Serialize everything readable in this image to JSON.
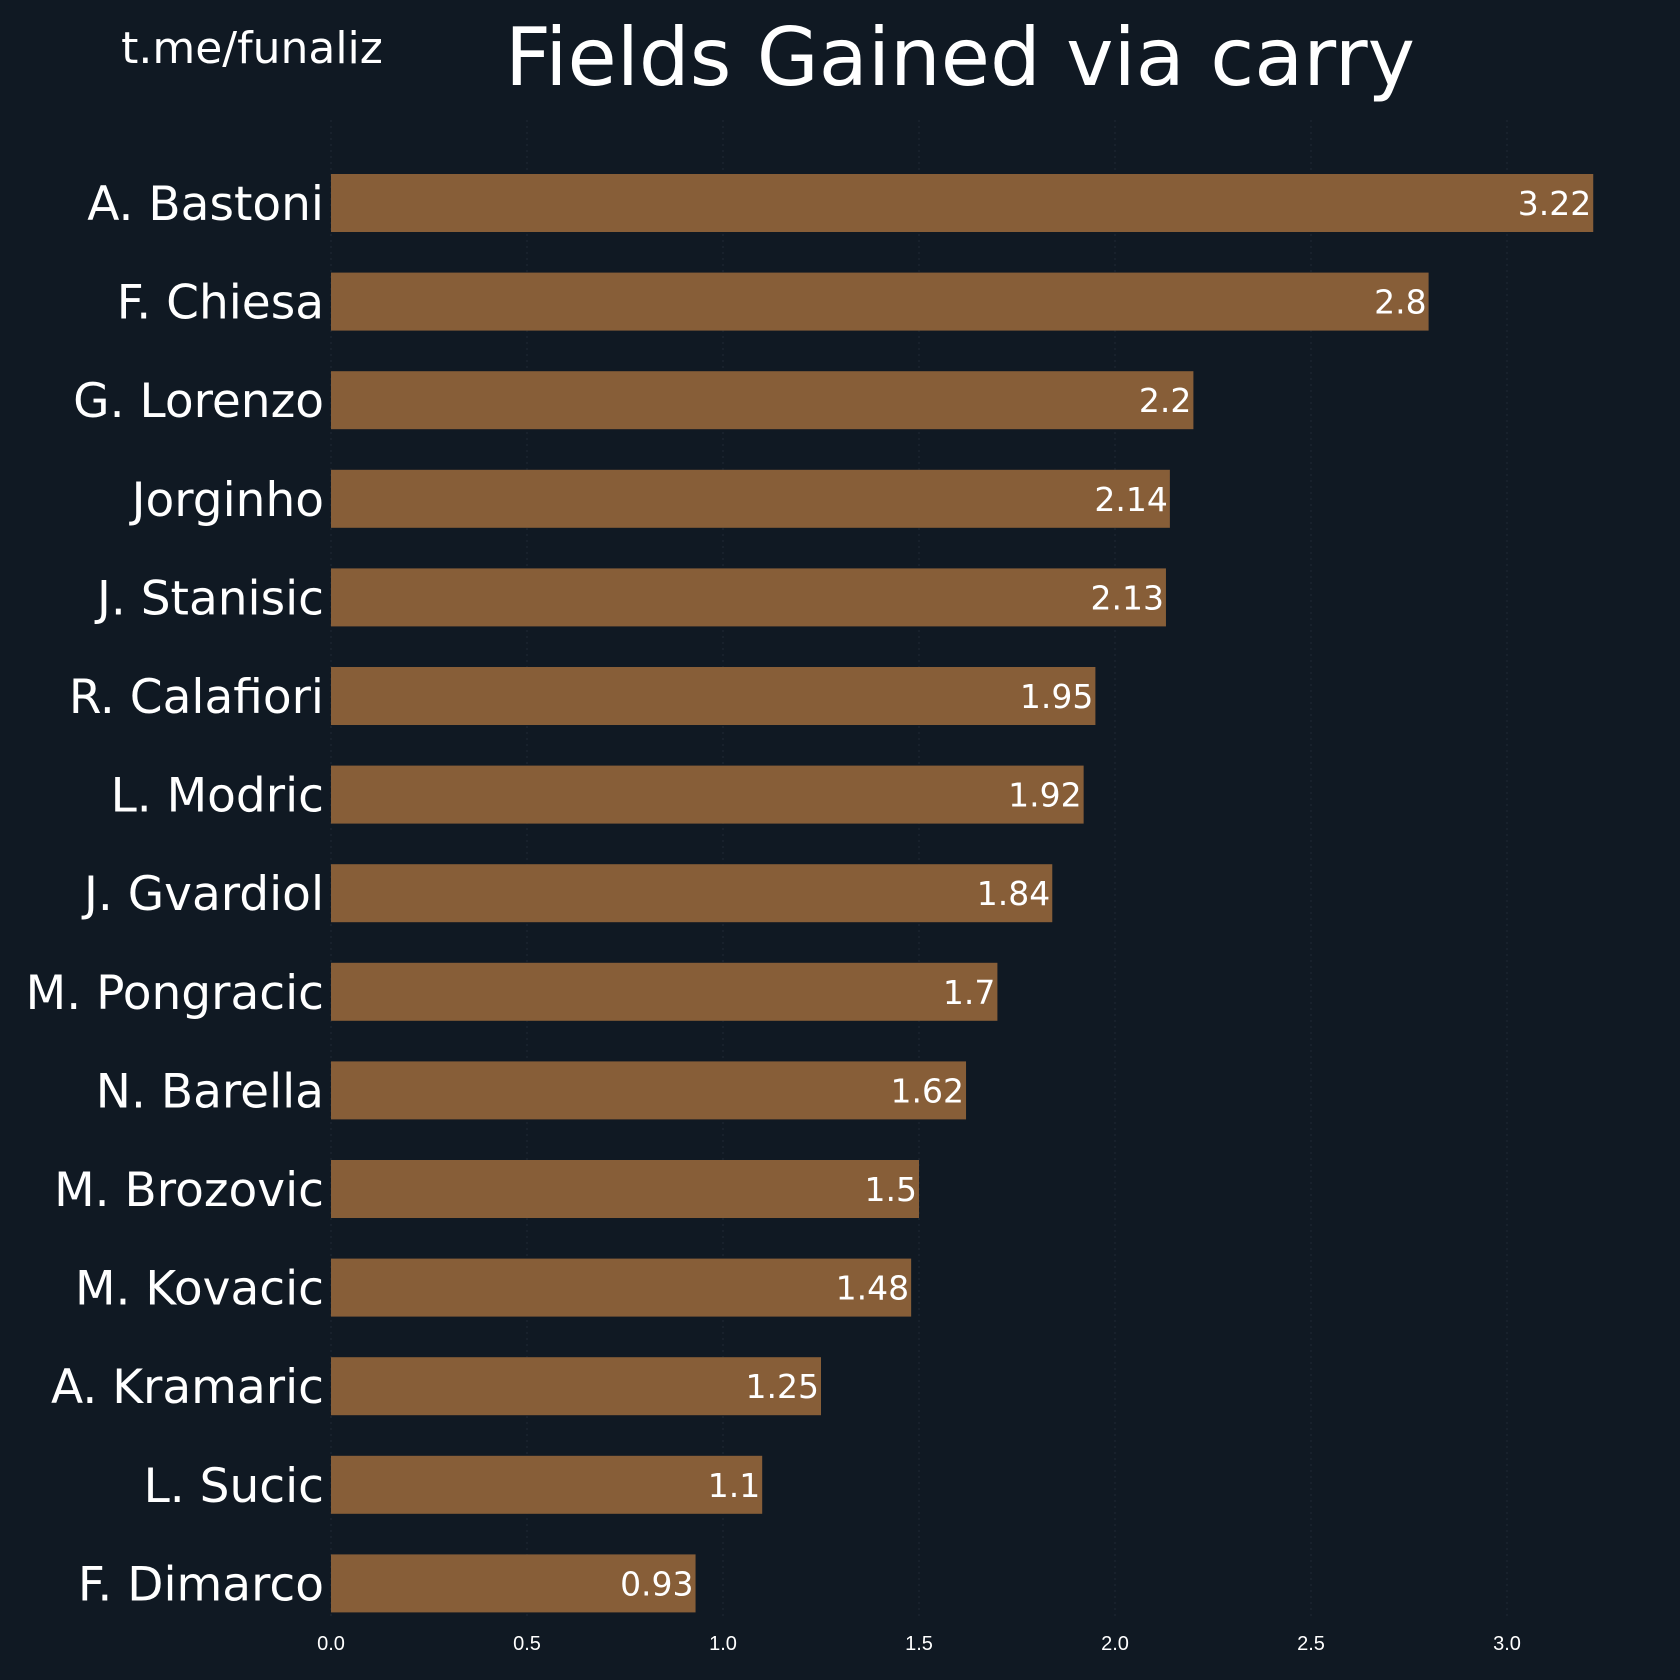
{
  "watermark": "t.me/funaliz",
  "colors": {
    "background": "#101923",
    "bar": "#875e38",
    "text": "#ffffff",
    "grid": "#1e2732"
  },
  "chart_data": {
    "type": "bar",
    "orientation": "horizontal",
    "title": "Fields Gained via carry",
    "xlabel": "",
    "ylabel": "",
    "xlim": [
      0,
      3.38
    ],
    "xticks": [
      0.0,
      0.5,
      1.0,
      1.5,
      2.0,
      2.5,
      3.0
    ],
    "xtick_labels": [
      "0.0",
      "0.5",
      "1.0",
      "1.5",
      "2.0",
      "2.5",
      "3.0"
    ],
    "grid": "vertical dotted",
    "legend": "none",
    "categories": [
      "A. Bastoni",
      "F. Chiesa",
      "G. Lorenzo",
      "Jorginho",
      "J. Stanisic",
      "R. Calafiori",
      "L. Modric",
      "J. Gvardiol",
      "M. Pongracic",
      "N. Barella",
      "M. Brozovic",
      "M. Kovacic",
      "A. Kramaric",
      "L. Sucic",
      "F. Dimarco"
    ],
    "values": [
      3.22,
      2.8,
      2.2,
      2.14,
      2.13,
      1.95,
      1.92,
      1.84,
      1.7,
      1.62,
      1.5,
      1.48,
      1.25,
      1.1,
      0.93
    ],
    "value_labels": [
      "3.22",
      "2.8",
      "2.2",
      "2.14",
      "2.13",
      "1.95",
      "1.92",
      "1.84",
      "1.7",
      "1.62",
      "1.5",
      "1.48",
      "1.25",
      "1.1",
      "0.93"
    ]
  }
}
